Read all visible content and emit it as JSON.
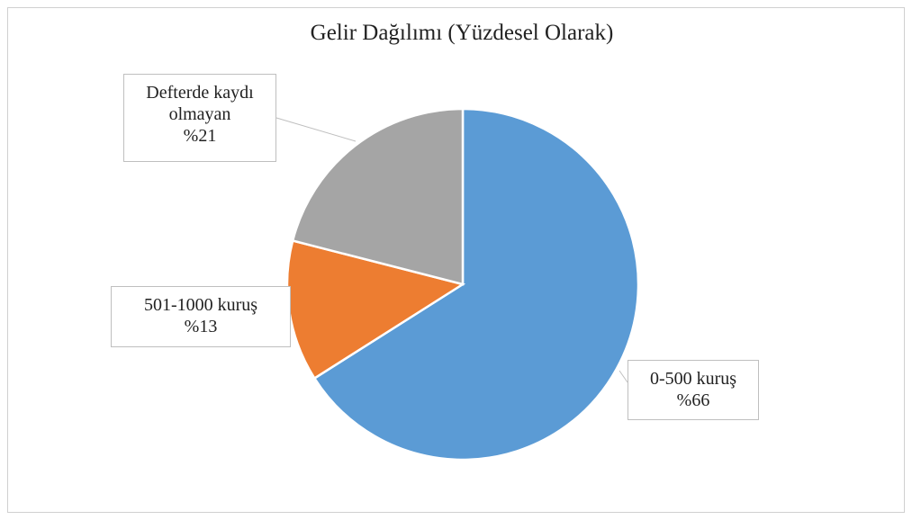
{
  "chart_data": {
    "type": "pie",
    "title": "Gelir Dağılımı (Yüzdesel Olarak)",
    "categories": [
      "0-500 kuruş",
      "501-1000 kuruş",
      "Defterde kaydı olmayan"
    ],
    "values": [
      66,
      13,
      21
    ],
    "value_labels": [
      "%66",
      "%13",
      "%21"
    ],
    "colors": [
      "#5b9bd5",
      "#ed7d31",
      "#a5a5a5"
    ]
  }
}
